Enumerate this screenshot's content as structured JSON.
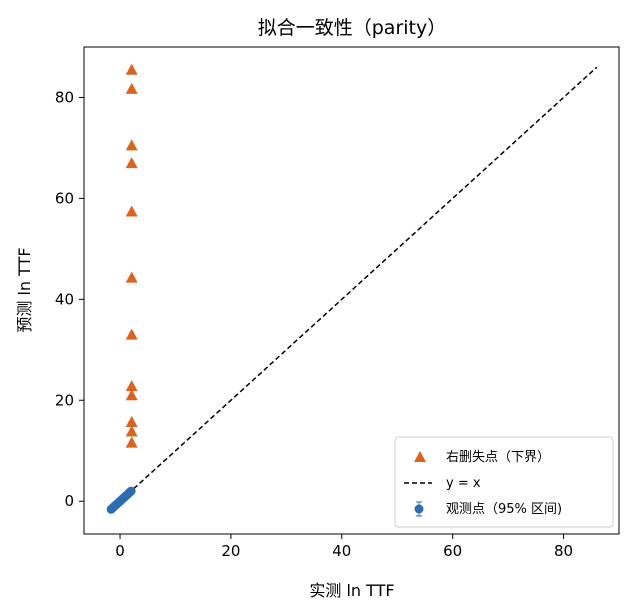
{
  "chart_data": {
    "type": "scatter",
    "title": "拟合一致性（parity）",
    "xlabel": "实测 ln TTF",
    "ylabel": "预测 ln TTF",
    "xlim": [
      -6.5,
      90
    ],
    "ylim": [
      -6.5,
      90
    ],
    "xticks": [
      0,
      20,
      40,
      60,
      80
    ],
    "yticks": [
      0,
      20,
      40,
      60,
      80
    ],
    "grid": false,
    "legend_position": "lower-right",
    "series": [
      {
        "name": "右删失点（下界）",
        "marker": "triangle",
        "color": "#d9641e",
        "x": [
          2.1,
          2.1,
          2.1,
          2.1,
          2.1,
          2.1,
          2.1,
          2.1,
          2.1,
          2.1,
          2.1,
          2.1
        ],
        "y": [
          85.5,
          81.7,
          70.5,
          67.0,
          57.4,
          44.3,
          33.0,
          22.8,
          21.0,
          15.7,
          13.8,
          11.6
        ]
      },
      {
        "name": "y = x",
        "marker": "dashed-line",
        "color": "#000000",
        "x": [
          -1.8,
          86
        ],
        "y": [
          -1.8,
          86
        ]
      },
      {
        "name": "观测点（95% 区间)",
        "marker": "circle-errorbar",
        "color": "#2e6db0",
        "x": [
          -1.6,
          -1.3,
          -1.0,
          -0.7,
          -0.4,
          -0.1,
          0.2,
          0.5,
          0.8,
          1.1,
          1.4,
          1.7,
          2.0
        ],
        "y": [
          -1.6,
          -1.3,
          -1.0,
          -0.7,
          -0.4,
          -0.1,
          0.2,
          0.5,
          0.8,
          1.1,
          1.4,
          1.7,
          2.0
        ]
      }
    ]
  }
}
